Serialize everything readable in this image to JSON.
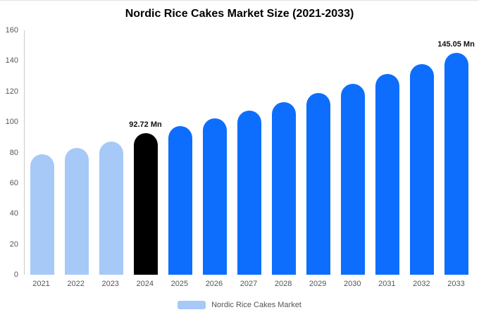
{
  "legend": {
    "label": "Nordic Rice Cakes Market",
    "swatch_color": "#a6c9f7"
  },
  "chart_data": {
    "type": "bar",
    "title": "Nordic Rice Cakes Market Size (2021-2033)",
    "categories": [
      "2021",
      "2022",
      "2023",
      "2024",
      "2025",
      "2026",
      "2027",
      "2028",
      "2029",
      "2030",
      "2031",
      "2032",
      "2033"
    ],
    "values": [
      78.9,
      82.9,
      87.2,
      92.72,
      97.4,
      102.4,
      107.6,
      113.1,
      118.9,
      125.0,
      131.3,
      138.0,
      145.05
    ],
    "bar_colors": [
      "#a6c9f7",
      "#a6c9f7",
      "#a6c9f7",
      "#000000",
      "#0d6efd",
      "#0d6efd",
      "#0d6efd",
      "#0d6efd",
      "#0d6efd",
      "#0d6efd",
      "#0d6efd",
      "#0d6efd",
      "#0d6efd"
    ],
    "annotations": [
      {
        "category": "2024",
        "text": "92.72 Mn"
      },
      {
        "category": "2033",
        "text": "145.05 Mn"
      }
    ],
    "xlabel": "",
    "ylabel": "",
    "ylim": [
      0,
      160
    ],
    "yticks": [
      0,
      20,
      40,
      60,
      80,
      100,
      120,
      140,
      160
    ],
    "grid": false,
    "legend_position": "bottom",
    "colors": {
      "historical": "#a6c9f7",
      "highlight": "#000000",
      "forecast": "#0d6efd",
      "axis_text": "#595959",
      "title_text": "#000000"
    }
  }
}
